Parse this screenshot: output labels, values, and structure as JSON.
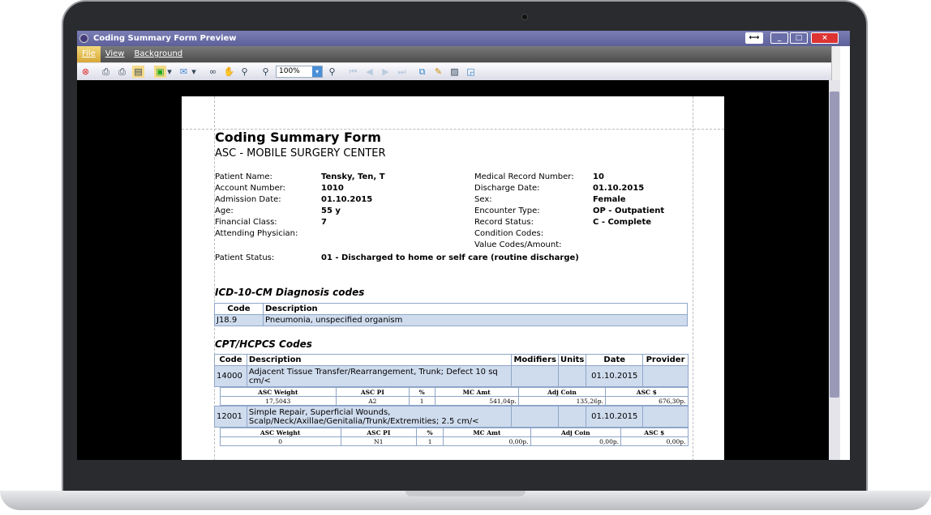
{
  "window": {
    "title": "Coding Summary Form Preview",
    "buttons": [
      "⟷",
      "_",
      "□",
      "×"
    ]
  },
  "menu": [
    "File",
    "View",
    "Background"
  ],
  "toolbar": {
    "zoom": "100%"
  },
  "form": {
    "title": "Coding Summary Form",
    "facility": "ASC - MOBILE SURGERY CENTER",
    "left_fields": [
      {
        "label": "Patient Name:",
        "value": "Tensky, Ten, T"
      },
      {
        "label": "Account Number:",
        "value": "1010"
      },
      {
        "label": "Admission Date:",
        "value": "01.10.2015"
      },
      {
        "label": "Age:",
        "value": "55 y"
      },
      {
        "label": "Financial Class:",
        "value": "7"
      },
      {
        "label": "Attending Physician:",
        "value": ""
      }
    ],
    "right_fields": [
      {
        "label": "Medical Record Number:",
        "value": "10"
      },
      {
        "label": "Discharge Date:",
        "value": "01.10.2015"
      },
      {
        "label": "Sex:",
        "value": "Female"
      },
      {
        "label": "Encounter Type:",
        "value": "OP - Outpatient"
      },
      {
        "label": "Record Status:",
        "value": "C - Complete"
      },
      {
        "label": "Condition Codes:",
        "value": ""
      },
      {
        "label": "Value Codes/Amount:",
        "value": ""
      }
    ],
    "patient_status": {
      "label": "Patient Status:",
      "value": "01 - Discharged to home or self care (routine discharge)"
    },
    "icd": {
      "title": "ICD-10-CM Diagnosis codes",
      "headers": [
        "Code",
        "Description"
      ],
      "rows": [
        [
          "J18.9",
          "Pneumonia, unspecified organism"
        ]
      ]
    },
    "cpt": {
      "title": "CPT/HCPCS Codes",
      "headers": [
        "Code",
        "Description",
        "Modifiers",
        "Units",
        "Date",
        "Provider"
      ],
      "sub_headers": [
        "ASC Weight",
        "ASC PI",
        "%",
        "MC Amt",
        "Adj Coin",
        "ASC $"
      ],
      "rows": [
        {
          "code": "14000",
          "description": "Adjacent Tissue Transfer/Rearrangement, Trunk; Defect 10 sq cm/<",
          "modifiers": "",
          "units": "",
          "date": "01.10.2015",
          "provider": "",
          "sub": [
            "17,5043",
            "A2",
            "1",
            "541,04p.",
            "135,26p.",
            "676,30p."
          ]
        },
        {
          "code": "12001",
          "description": "Simple Repair, Superficial Wounds, Scalp/Neck/Axillae/Genitalia/Trunk/Extremities; 2.5 cm/<",
          "modifiers": "",
          "units": "",
          "date": "01.10.2015",
          "provider": "",
          "sub": [
            "0",
            "N1",
            "1",
            "0,00p.",
            "0,00p.",
            "0,00p."
          ]
        }
      ]
    }
  }
}
